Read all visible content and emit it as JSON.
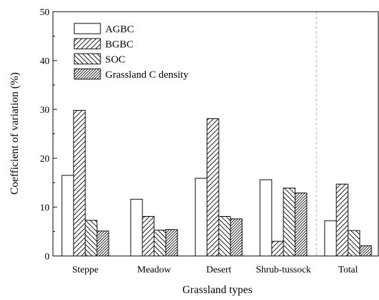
{
  "chart_data": {
    "type": "bar",
    "title": "",
    "xlabel": "Grassland types",
    "ylabel": "Coefficient of variation (%)",
    "ylim": [
      0,
      50
    ],
    "yticks": [
      0,
      10,
      20,
      30,
      40,
      50
    ],
    "categories": [
      "Steppe",
      "Meadow",
      "Desert",
      "Shrub-tussock",
      "Total"
    ],
    "series": [
      {
        "name": "AGBC",
        "pattern": "none",
        "values": [
          16.5,
          11.6,
          15.9,
          15.6,
          7.2
        ]
      },
      {
        "name": "BGBC",
        "pattern": "forward-diagonal",
        "values": [
          29.8,
          8.1,
          28.1,
          3.0,
          14.7
        ]
      },
      {
        "name": "SOC",
        "pattern": "backward-diagonal",
        "values": [
          7.3,
          5.3,
          8.1,
          13.9,
          5.2
        ]
      },
      {
        "name": "Grassland C density",
        "pattern": "dense-forward-diagonal",
        "values": [
          5.1,
          5.4,
          7.6,
          12.9,
          2.1
        ]
      }
    ],
    "separator_before_category": "Total",
    "legend_position": "top-left",
    "grid": false,
    "colors": {
      "stroke": "#000000",
      "fill": "#ffffff",
      "separator": "#b0b0b0"
    }
  }
}
